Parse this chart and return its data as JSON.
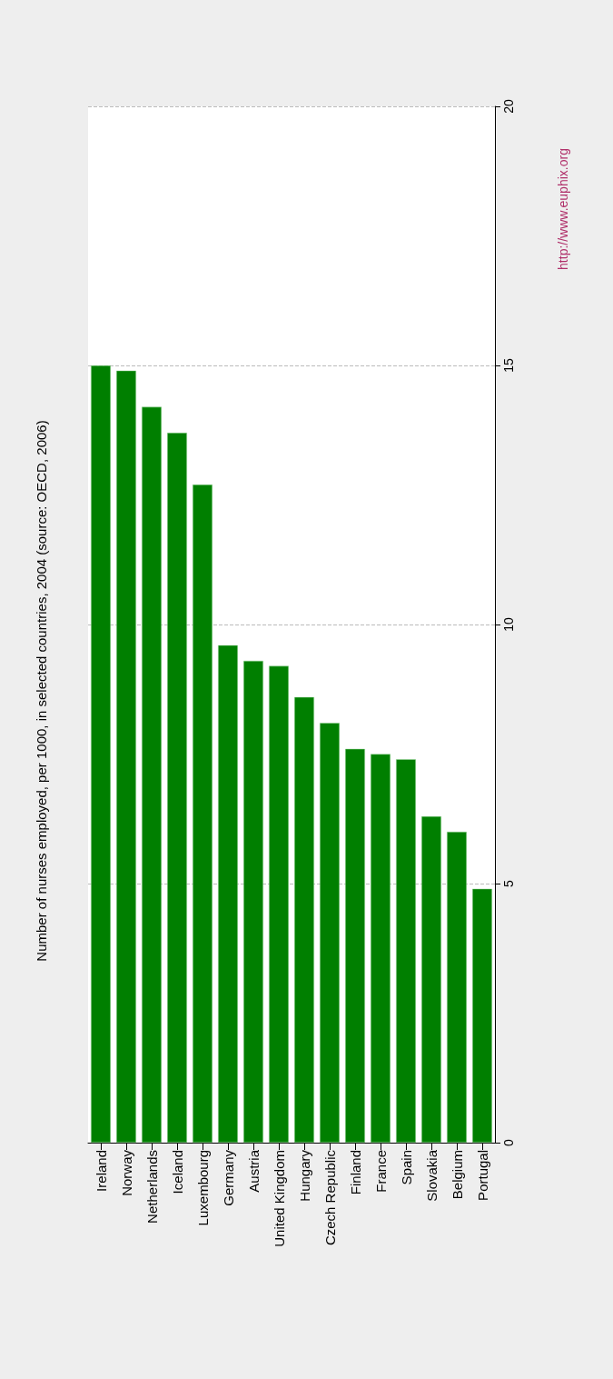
{
  "chart_data": {
    "type": "bar",
    "title": "Number of nurses employed, per 1000, in selected countries, 2004 (source: OECD, 2006)",
    "categories": [
      "Ireland",
      "Norway",
      "Netherlands",
      "Iceland",
      "Luxembourg",
      "Germany",
      "Austria",
      "United Kingdom",
      "Hungary",
      "Czech Republic",
      "Finland",
      "France",
      "Spain",
      "Slovakia",
      "Belgium",
      "Portugal"
    ],
    "values": [
      15.0,
      14.9,
      14.2,
      13.7,
      12.7,
      9.6,
      9.3,
      9.2,
      8.6,
      8.1,
      7.6,
      7.5,
      7.4,
      6.3,
      6.0,
      4.9
    ],
    "color": "#007f00",
    "ylim": [
      0,
      20
    ],
    "yticks": [
      0,
      5,
      10,
      15,
      20
    ],
    "grid": "y",
    "annotations": [
      "http://www.euphix.org"
    ]
  }
}
